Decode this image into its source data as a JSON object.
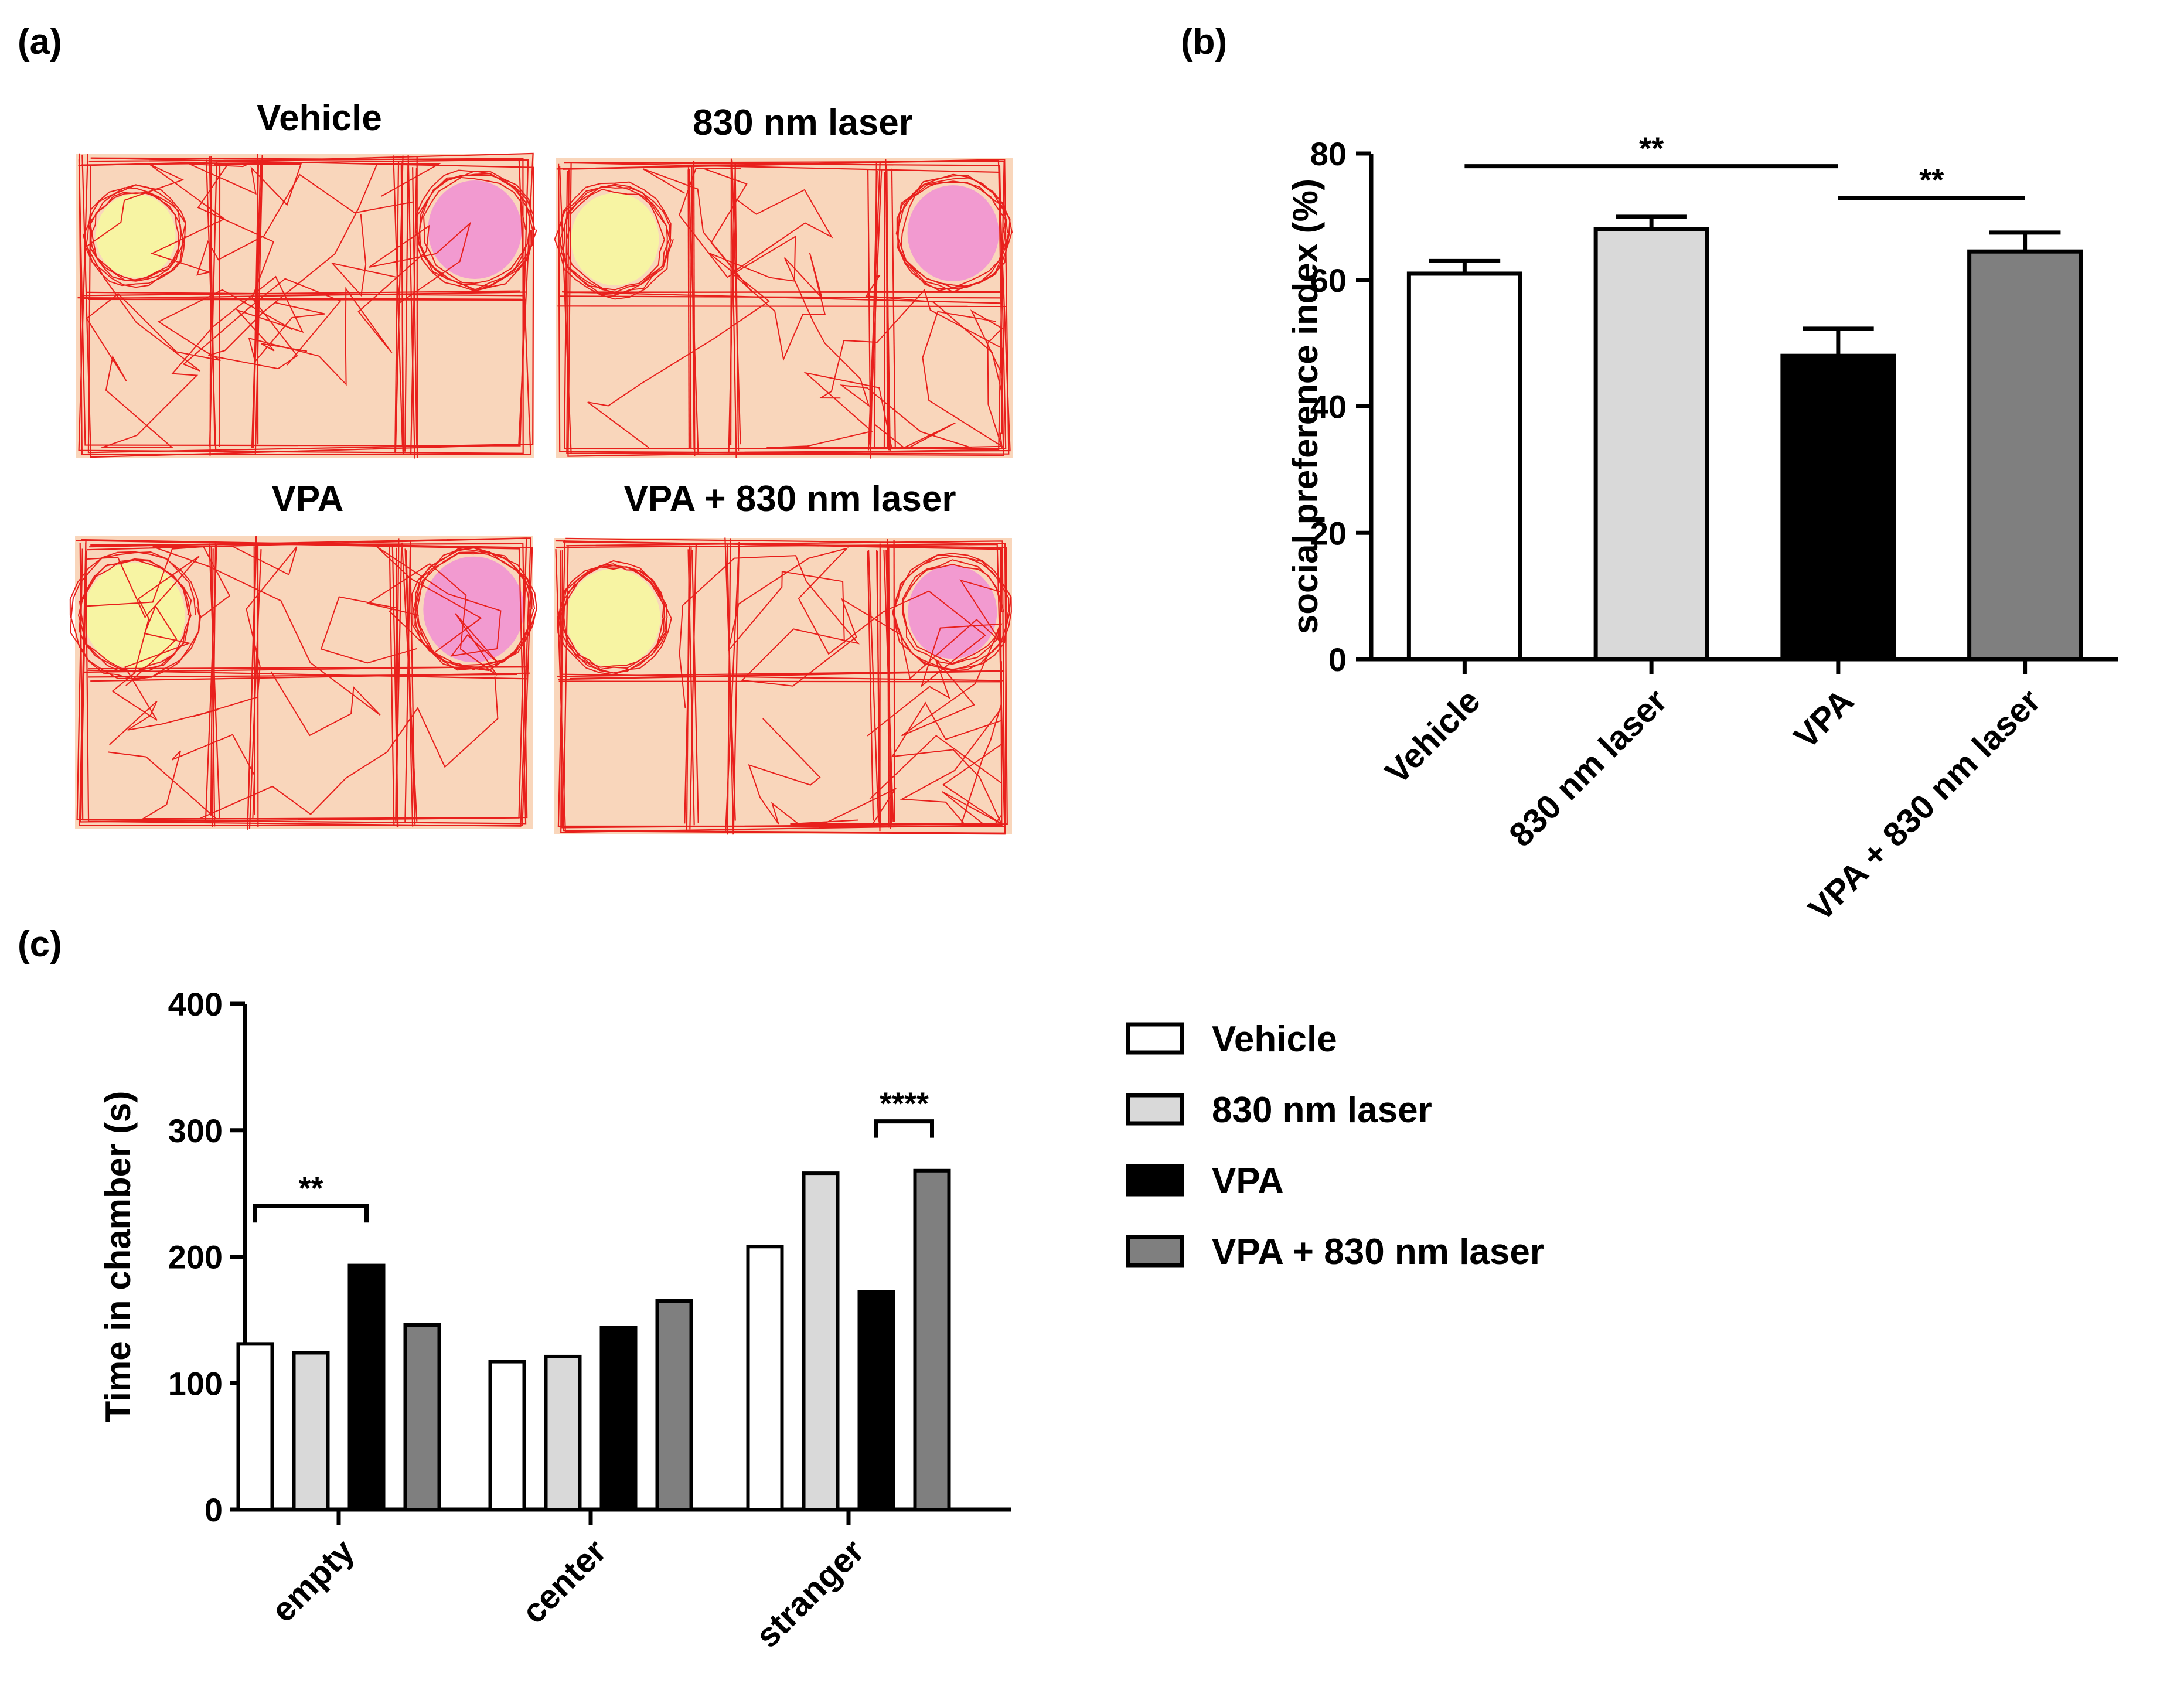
{
  "panels": {
    "a": {
      "label": "(a)",
      "arenas": [
        {
          "title": "Vehicle"
        },
        {
          "title": "830 nm laser"
        },
        {
          "title": "VPA"
        },
        {
          "title": "VPA + 830 nm laser"
        }
      ]
    },
    "b": {
      "label": "(b)"
    },
    "c": {
      "label": "(c)"
    }
  },
  "colors": {
    "arena_bg": "#f9d6bb",
    "empty_zone": "#f7f4a3",
    "stranger_zone": "#f29ad0",
    "track": "#e8201c",
    "vehicle": "#ffffff",
    "laser": "#d9d9d9",
    "vpa": "#000000",
    "vpa_laser": "#7f7f7f"
  },
  "chart_data": [
    {
      "id": "b",
      "type": "bar",
      "categories": [
        "Vehicle",
        "830 nm laser",
        "VPA",
        "VPA + 830 nm laser"
      ],
      "values": [
        61,
        68,
        48,
        64.5
      ],
      "errors": [
        2,
        2,
        4.3,
        3
      ],
      "ylabel": "social preference index (%)",
      "xlabel": "",
      "ylim": [
        0,
        80
      ],
      "yticks": [
        0,
        20,
        40,
        60,
        80
      ],
      "significance": [
        {
          "from": 0,
          "to": 2,
          "label": "**",
          "y": 78
        },
        {
          "from": 2,
          "to": 3,
          "label": "**",
          "y": 73
        }
      ]
    },
    {
      "id": "c",
      "type": "bar",
      "categories": [
        "empty",
        "center",
        "stranger"
      ],
      "series": [
        {
          "name": "Vehicle",
          "values": [
            131,
            117,
            208
          ]
        },
        {
          "name": "830 nm laser",
          "values": [
            124,
            121,
            266
          ]
        },
        {
          "name": "VPA",
          "values": [
            193,
            144,
            172
          ]
        },
        {
          "name": "VPA + 830 nm laser",
          "values": [
            146,
            165,
            268
          ]
        }
      ],
      "ylabel": "Time in chamber (s)",
      "xlabel": "",
      "ylim": [
        0,
        400
      ],
      "yticks": [
        0,
        100,
        200,
        300,
        400
      ],
      "legend": [
        "Vehicle",
        "830 nm laser",
        "VPA",
        "VPA + 830 nm laser"
      ],
      "significance": [
        {
          "category": 0,
          "from": 0,
          "to": 2,
          "label": "**",
          "y": 240
        },
        {
          "category": 2,
          "from": 2,
          "to": 3,
          "label": "****",
          "y": 307
        }
      ]
    }
  ]
}
